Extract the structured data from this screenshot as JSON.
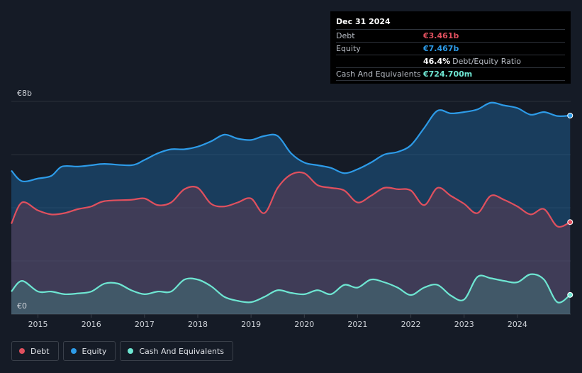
{
  "tooltip": {
    "date": "Dec 31 2024",
    "debt_label": "Debt",
    "debt_value": "€3.461b",
    "equity_label": "Equity",
    "equity_value": "€7.467b",
    "ratio_value": "46.4%",
    "ratio_label": "Debt/Equity Ratio",
    "cash_label": "Cash And Equivalents",
    "cash_value": "€724.700m"
  },
  "legend": [
    {
      "label": "Debt",
      "color": "#e0505e"
    },
    {
      "label": "Equity",
      "color": "#2d9be8"
    },
    {
      "label": "Cash And Equivalents",
      "color": "#6ee6d2"
    }
  ],
  "chart_data": {
    "type": "area",
    "y_unit": "€b",
    "ylim": [
      0,
      8
    ],
    "xlim": [
      2014.5,
      2025.0
    ],
    "y_tick_labels": [
      {
        "value": 8,
        "label": "€8b"
      },
      {
        "value": 0,
        "label": "€0"
      }
    ],
    "x_ticks": [
      2015,
      2016,
      2017,
      2018,
      2019,
      2020,
      2021,
      2022,
      2023,
      2024
    ],
    "grid": true,
    "series": [
      {
        "name": "Equity",
        "color": "#2d9be8",
        "points": [
          [
            2014.5,
            5.4
          ],
          [
            2014.7,
            5.0
          ],
          [
            2015.0,
            5.1
          ],
          [
            2015.25,
            5.2
          ],
          [
            2015.45,
            5.55
          ],
          [
            2015.75,
            5.55
          ],
          [
            2016.0,
            5.6
          ],
          [
            2016.25,
            5.65
          ],
          [
            2016.75,
            5.6
          ],
          [
            2017.0,
            5.8
          ],
          [
            2017.25,
            6.05
          ],
          [
            2017.5,
            6.2
          ],
          [
            2017.75,
            6.2
          ],
          [
            2018.0,
            6.3
          ],
          [
            2018.25,
            6.5
          ],
          [
            2018.5,
            6.75
          ],
          [
            2018.75,
            6.6
          ],
          [
            2019.0,
            6.55
          ],
          [
            2019.25,
            6.7
          ],
          [
            2019.5,
            6.7
          ],
          [
            2019.75,
            6.05
          ],
          [
            2020.0,
            5.7
          ],
          [
            2020.25,
            5.6
          ],
          [
            2020.5,
            5.5
          ],
          [
            2020.75,
            5.3
          ],
          [
            2021.0,
            5.45
          ],
          [
            2021.25,
            5.7
          ],
          [
            2021.5,
            6.0
          ],
          [
            2021.75,
            6.1
          ],
          [
            2022.0,
            6.35
          ],
          [
            2022.25,
            7.0
          ],
          [
            2022.5,
            7.65
          ],
          [
            2022.75,
            7.55
          ],
          [
            2023.0,
            7.6
          ],
          [
            2023.25,
            7.7
          ],
          [
            2023.5,
            7.95
          ],
          [
            2023.75,
            7.85
          ],
          [
            2024.0,
            7.75
          ],
          [
            2024.25,
            7.5
          ],
          [
            2024.5,
            7.6
          ],
          [
            2024.75,
            7.45
          ],
          [
            2024.99,
            7.467
          ]
        ]
      },
      {
        "name": "Debt",
        "color": "#e0505e",
        "points": [
          [
            2014.5,
            3.4
          ],
          [
            2014.7,
            4.2
          ],
          [
            2015.0,
            3.9
          ],
          [
            2015.25,
            3.75
          ],
          [
            2015.5,
            3.8
          ],
          [
            2015.75,
            3.95
          ],
          [
            2016.0,
            4.05
          ],
          [
            2016.25,
            4.25
          ],
          [
            2016.75,
            4.3
          ],
          [
            2017.0,
            4.35
          ],
          [
            2017.25,
            4.1
          ],
          [
            2017.5,
            4.2
          ],
          [
            2017.75,
            4.7
          ],
          [
            2018.0,
            4.75
          ],
          [
            2018.25,
            4.15
          ],
          [
            2018.5,
            4.05
          ],
          [
            2018.75,
            4.2
          ],
          [
            2019.0,
            4.35
          ],
          [
            2019.25,
            3.8
          ],
          [
            2019.5,
            4.75
          ],
          [
            2019.75,
            5.25
          ],
          [
            2020.0,
            5.3
          ],
          [
            2020.25,
            4.85
          ],
          [
            2020.5,
            4.75
          ],
          [
            2020.75,
            4.65
          ],
          [
            2021.0,
            4.2
          ],
          [
            2021.25,
            4.45
          ],
          [
            2021.5,
            4.75
          ],
          [
            2021.75,
            4.7
          ],
          [
            2022.0,
            4.65
          ],
          [
            2022.25,
            4.1
          ],
          [
            2022.5,
            4.75
          ],
          [
            2022.75,
            4.45
          ],
          [
            2023.0,
            4.15
          ],
          [
            2023.25,
            3.8
          ],
          [
            2023.5,
            4.45
          ],
          [
            2023.75,
            4.3
          ],
          [
            2024.0,
            4.05
          ],
          [
            2024.25,
            3.75
          ],
          [
            2024.5,
            3.95
          ],
          [
            2024.75,
            3.3
          ],
          [
            2024.99,
            3.461
          ]
        ]
      },
      {
        "name": "Cash And Equivalents",
        "color": "#6ee6d2",
        "points": [
          [
            2014.5,
            0.85
          ],
          [
            2014.7,
            1.25
          ],
          [
            2015.0,
            0.85
          ],
          [
            2015.25,
            0.85
          ],
          [
            2015.5,
            0.75
          ],
          [
            2015.75,
            0.78
          ],
          [
            2016.0,
            0.85
          ],
          [
            2016.25,
            1.15
          ],
          [
            2016.5,
            1.15
          ],
          [
            2016.75,
            0.9
          ],
          [
            2017.0,
            0.75
          ],
          [
            2017.25,
            0.85
          ],
          [
            2017.5,
            0.85
          ],
          [
            2017.75,
            1.3
          ],
          [
            2018.0,
            1.3
          ],
          [
            2018.25,
            1.05
          ],
          [
            2018.5,
            0.65
          ],
          [
            2018.75,
            0.5
          ],
          [
            2019.0,
            0.45
          ],
          [
            2019.25,
            0.65
          ],
          [
            2019.5,
            0.9
          ],
          [
            2019.75,
            0.8
          ],
          [
            2020.0,
            0.75
          ],
          [
            2020.25,
            0.9
          ],
          [
            2020.5,
            0.75
          ],
          [
            2020.75,
            1.1
          ],
          [
            2021.0,
            1.0
          ],
          [
            2021.25,
            1.3
          ],
          [
            2021.5,
            1.2
          ],
          [
            2021.75,
            1.0
          ],
          [
            2022.0,
            0.72
          ],
          [
            2022.25,
            1.0
          ],
          [
            2022.5,
            1.1
          ],
          [
            2022.75,
            0.7
          ],
          [
            2023.0,
            0.55
          ],
          [
            2023.25,
            1.4
          ],
          [
            2023.5,
            1.35
          ],
          [
            2023.75,
            1.25
          ],
          [
            2024.0,
            1.2
          ],
          [
            2024.25,
            1.5
          ],
          [
            2024.5,
            1.3
          ],
          [
            2024.75,
            0.45
          ],
          [
            2024.99,
            0.725
          ]
        ]
      }
    ]
  }
}
